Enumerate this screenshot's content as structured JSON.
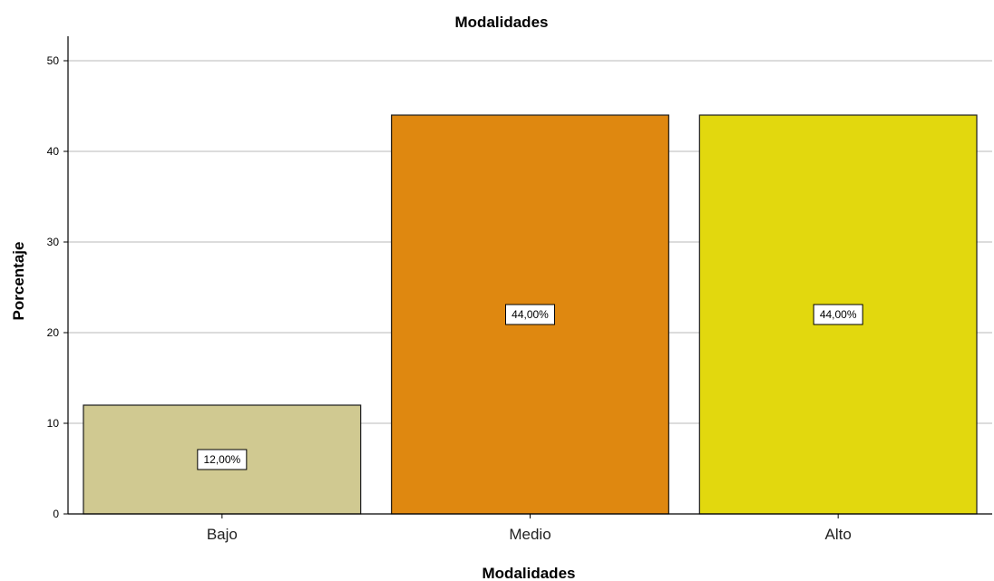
{
  "chart_data": {
    "type": "bar",
    "title": "Modalidades",
    "xlabel": "Modalidades",
    "ylabel": "Porcentaje",
    "categories": [
      "Bajo",
      "Medio",
      "Alto"
    ],
    "values": [
      12,
      44,
      44
    ],
    "data_labels": [
      "12,00%",
      "44,00%",
      "44,00%"
    ],
    "colors": [
      "#d0c991",
      "#df8810",
      "#e2d80e"
    ],
    "ylim": [
      0,
      52.5
    ],
    "yticks": [
      0,
      10,
      20,
      30,
      40,
      50
    ],
    "ytick_labels": [
      "0",
      "10",
      "20",
      "30",
      "40",
      "50"
    ],
    "grid": true,
    "legend": "none"
  }
}
